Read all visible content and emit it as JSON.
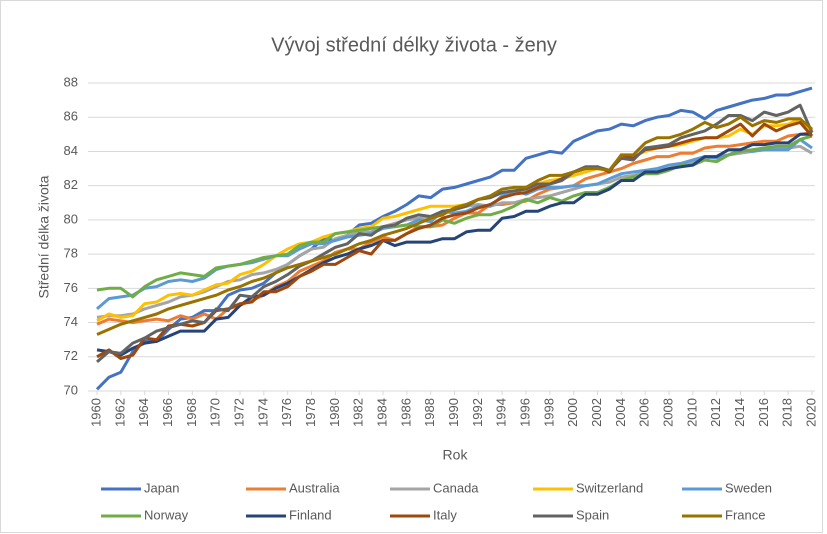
{
  "chart_data": {
    "type": "line",
    "title": "Vývoj střední délky života - ženy",
    "x_label": "Rok",
    "y_label": "Střední délka života",
    "x": [
      1960,
      1961,
      1962,
      1963,
      1964,
      1965,
      1966,
      1967,
      1968,
      1969,
      1970,
      1971,
      1972,
      1973,
      1974,
      1975,
      1976,
      1977,
      1978,
      1979,
      1980,
      1981,
      1982,
      1983,
      1984,
      1985,
      1986,
      1987,
      1988,
      1989,
      1990,
      1991,
      1992,
      1993,
      1994,
      1995,
      1996,
      1997,
      1998,
      1999,
      2000,
      2001,
      2002,
      2003,
      2004,
      2005,
      2006,
      2007,
      2008,
      2009,
      2010,
      2011,
      2012,
      2013,
      2014,
      2015,
      2016,
      2017,
      2018,
      2019,
      2020
    ],
    "xlim": [
      1960,
      2020
    ],
    "xticks": [
      1960,
      1962,
      1964,
      1966,
      1968,
      1970,
      1972,
      1974,
      1976,
      1978,
      1980,
      1982,
      1984,
      1986,
      1988,
      1990,
      1992,
      1994,
      1996,
      1998,
      2000,
      2002,
      2004,
      2006,
      2008,
      2010,
      2012,
      2014,
      2016,
      2018,
      2020
    ],
    "ylim": [
      70,
      88
    ],
    "yticks": [
      70,
      72,
      74,
      76,
      78,
      80,
      82,
      84,
      86,
      88
    ],
    "grid": true,
    "legend": "bottom",
    "series": [
      {
        "name": "Japan",
        "color": "#4472c4",
        "values": [
          70.1,
          70.8,
          71.1,
          72.3,
          72.9,
          72.9,
          73.6,
          74.2,
          74.3,
          74.7,
          74.7,
          75.6,
          75.9,
          76.0,
          76.3,
          76.9,
          77.4,
          77.9,
          78.3,
          78.9,
          78.8,
          79.1,
          79.7,
          79.8,
          80.2,
          80.5,
          80.9,
          81.4,
          81.3,
          81.8,
          81.9,
          82.1,
          82.3,
          82.5,
          82.9,
          82.9,
          83.6,
          83.8,
          84.0,
          83.9,
          84.6,
          84.9,
          85.2,
          85.3,
          85.6,
          85.5,
          85.8,
          86.0,
          86.1,
          86.4,
          86.3,
          85.9,
          86.4,
          86.6,
          86.8,
          87.0,
          87.1,
          87.3,
          87.3,
          87.5,
          87.7
        ]
      },
      {
        "name": "Australia",
        "color": "#ed7d31",
        "values": [
          73.9,
          74.2,
          74.1,
          74.0,
          74.1,
          74.2,
          74.1,
          74.4,
          74.2,
          74.5,
          74.2,
          74.8,
          75.0,
          75.3,
          75.6,
          76.1,
          76.4,
          77.0,
          77.3,
          77.6,
          78.1,
          78.3,
          78.3,
          78.7,
          79.0,
          78.8,
          79.2,
          79.6,
          79.6,
          79.7,
          80.1,
          80.4,
          80.4,
          80.9,
          80.9,
          81.0,
          81.1,
          81.5,
          81.8,
          81.9,
          82.0,
          82.4,
          82.6,
          82.8,
          83.0,
          83.3,
          83.5,
          83.7,
          83.7,
          83.9,
          83.9,
          84.2,
          84.3,
          84.3,
          84.4,
          84.5,
          84.6,
          84.6,
          84.9,
          85.0,
          85.1
        ]
      },
      {
        "name": "Canada",
        "color": "#a5a5a5",
        "values": [
          74.3,
          74.4,
          74.4,
          74.5,
          74.8,
          75.0,
          75.2,
          75.5,
          75.6,
          75.8,
          76.1,
          76.4,
          76.5,
          76.8,
          76.9,
          77.1,
          77.4,
          77.9,
          78.3,
          78.4,
          78.9,
          79.1,
          79.3,
          79.3,
          79.6,
          79.8,
          80.0,
          80.1,
          80.2,
          80.5,
          80.6,
          80.8,
          80.9,
          80.8,
          81.0,
          81.0,
          81.2,
          81.3,
          81.4,
          81.6,
          81.8,
          82.0,
          82.1,
          82.2,
          82.5,
          82.6,
          82.8,
          82.9,
          83.0,
          83.2,
          83.4,
          83.6,
          83.7,
          83.8,
          83.9,
          84.0,
          84.1,
          84.2,
          84.2,
          84.3,
          83.9
        ]
      },
      {
        "name": "Switzerland",
        "color": "#ffc000",
        "values": [
          74.1,
          74.5,
          74.3,
          74.4,
          75.1,
          75.2,
          75.6,
          75.7,
          75.6,
          75.9,
          76.2,
          76.3,
          76.8,
          77.0,
          77.4,
          77.9,
          78.3,
          78.6,
          78.7,
          79.0,
          79.2,
          79.3,
          79.5,
          79.6,
          80.1,
          80.2,
          80.4,
          80.6,
          80.8,
          80.8,
          80.8,
          80.9,
          81.2,
          81.3,
          81.6,
          81.6,
          81.9,
          82.1,
          82.3,
          82.4,
          82.6,
          82.8,
          83.0,
          82.9,
          83.6,
          83.7,
          84.0,
          84.2,
          84.3,
          84.4,
          84.6,
          84.8,
          84.8,
          84.9,
          85.3,
          85.0,
          85.5,
          85.5,
          85.6,
          85.9,
          85.2
        ]
      },
      {
        "name": "Sweden",
        "color": "#5b9bd5",
        "values": [
          74.8,
          75.4,
          75.5,
          75.6,
          76.0,
          76.1,
          76.4,
          76.5,
          76.4,
          76.6,
          77.1,
          77.3,
          77.4,
          77.5,
          77.7,
          77.9,
          77.9,
          78.3,
          78.6,
          78.6,
          78.8,
          79.0,
          79.1,
          79.2,
          79.5,
          79.6,
          79.7,
          80.0,
          79.9,
          80.5,
          80.4,
          80.5,
          80.8,
          80.8,
          81.4,
          81.7,
          81.5,
          81.8,
          81.9,
          81.9,
          82.0,
          82.0,
          82.1,
          82.4,
          82.7,
          82.8,
          82.9,
          83.0,
          83.2,
          83.3,
          83.5,
          83.7,
          83.6,
          83.8,
          84.1,
          84.0,
          84.1,
          84.1,
          84.1,
          84.7,
          84.2
        ]
      },
      {
        "name": "Norway",
        "color": "#70ad47",
        "values": [
          75.9,
          76.0,
          76.0,
          75.5,
          76.1,
          76.5,
          76.7,
          76.9,
          76.8,
          76.7,
          77.2,
          77.3,
          77.4,
          77.6,
          77.8,
          77.9,
          78.0,
          78.5,
          78.7,
          78.7,
          79.2,
          79.3,
          79.4,
          79.5,
          79.6,
          79.6,
          79.7,
          79.6,
          79.6,
          80.0,
          79.8,
          80.1,
          80.3,
          80.3,
          80.5,
          80.8,
          81.2,
          81.0,
          81.3,
          81.1,
          81.4,
          81.6,
          81.6,
          81.9,
          82.3,
          82.5,
          82.7,
          82.7,
          82.9,
          83.2,
          83.2,
          83.5,
          83.4,
          83.8,
          84.0,
          84.1,
          84.2,
          84.3,
          84.3,
          84.7,
          84.9
        ]
      },
      {
        "name": "Finland",
        "color": "#264478",
        "values": [
          72.4,
          72.3,
          72.1,
          72.5,
          72.8,
          72.9,
          73.2,
          73.5,
          73.5,
          73.5,
          74.2,
          74.3,
          75.0,
          75.5,
          75.6,
          76.0,
          76.3,
          76.7,
          77.1,
          77.5,
          77.8,
          78.0,
          78.3,
          78.5,
          78.8,
          78.5,
          78.7,
          78.7,
          78.7,
          78.9,
          78.9,
          79.3,
          79.4,
          79.4,
          80.1,
          80.2,
          80.5,
          80.5,
          80.8,
          81.0,
          81.0,
          81.5,
          81.5,
          81.8,
          82.3,
          82.3,
          82.8,
          82.8,
          83.0,
          83.1,
          83.2,
          83.7,
          83.7,
          84.1,
          84.1,
          84.4,
          84.4,
          84.5,
          84.5,
          85.0,
          85.0
        ]
      },
      {
        "name": "Italy",
        "color": "#9e480e",
        "values": [
          72.0,
          72.4,
          71.9,
          72.1,
          73.1,
          73.0,
          73.8,
          73.9,
          73.8,
          74.0,
          74.7,
          74.8,
          75.1,
          75.2,
          75.8,
          75.8,
          76.1,
          76.7,
          77.0,
          77.4,
          77.4,
          77.8,
          78.2,
          78.0,
          78.8,
          78.8,
          79.2,
          79.5,
          79.7,
          80.1,
          80.3,
          80.4,
          80.7,
          80.9,
          81.3,
          81.5,
          81.6,
          81.9,
          82.1,
          82.4,
          82.8,
          83.0,
          83.1,
          82.8,
          83.8,
          83.6,
          84.1,
          84.2,
          84.3,
          84.5,
          84.7,
          84.8,
          84.8,
          85.2,
          85.6,
          84.9,
          85.6,
          85.2,
          85.5,
          85.7,
          84.9
        ]
      },
      {
        "name": "Spain",
        "color": "#636363",
        "values": [
          71.7,
          72.3,
          72.2,
          72.8,
          73.1,
          73.5,
          73.7,
          73.9,
          74.1,
          74.0,
          74.8,
          74.7,
          75.6,
          75.5,
          76.1,
          76.4,
          76.8,
          77.3,
          77.6,
          78.0,
          78.4,
          78.6,
          79.2,
          79.1,
          79.6,
          79.7,
          80.1,
          80.3,
          80.2,
          80.5,
          80.6,
          80.8,
          81.2,
          81.3,
          81.6,
          81.7,
          81.8,
          82.1,
          82.1,
          82.3,
          82.8,
          83.1,
          83.1,
          82.9,
          83.6,
          83.5,
          84.2,
          84.3,
          84.4,
          84.8,
          85.0,
          85.2,
          85.6,
          86.1,
          86.1,
          85.8,
          86.3,
          86.1,
          86.3,
          86.7,
          85.1
        ]
      },
      {
        "name": "France",
        "color": "#997300",
        "values": [
          73.3,
          73.6,
          73.9,
          74.1,
          74.3,
          74.5,
          74.8,
          75.0,
          75.2,
          75.4,
          75.6,
          75.9,
          76.1,
          76.4,
          76.6,
          76.9,
          77.2,
          77.4,
          77.6,
          77.8,
          78.0,
          78.3,
          78.6,
          78.8,
          79.1,
          79.3,
          79.5,
          79.8,
          80.1,
          80.3,
          80.7,
          80.9,
          81.2,
          81.4,
          81.8,
          81.9,
          81.9,
          82.3,
          82.6,
          82.6,
          82.8,
          83.0,
          83.0,
          82.9,
          83.8,
          83.8,
          84.5,
          84.8,
          84.8,
          85.0,
          85.3,
          85.7,
          85.4,
          85.6,
          86.0,
          85.5,
          85.8,
          85.7,
          85.9,
          85.9,
          85.3
        ]
      }
    ]
  }
}
